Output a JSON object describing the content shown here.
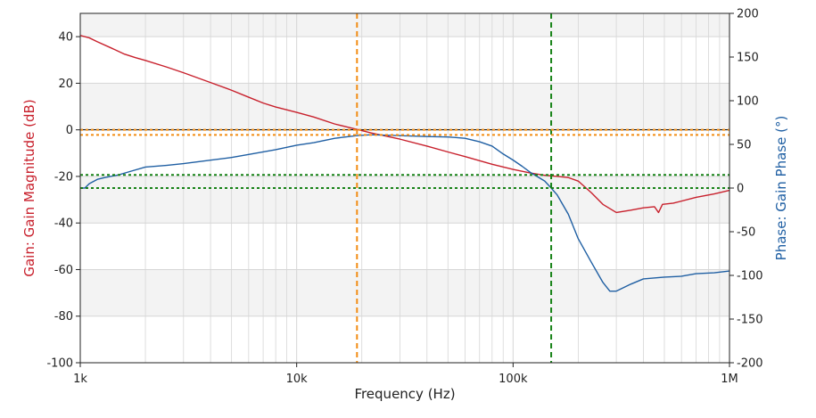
{
  "chart_data": {
    "type": "line",
    "title": "",
    "xlabel": "Frequency (Hz)",
    "ylabel_left": "Gain: Gain Magnitude (dB)",
    "ylabel_right": "Phase: Gain Phase (°)",
    "x_scale": "log",
    "xlim": [
      1000,
      1000000
    ],
    "ylim_left": [
      -100,
      50
    ],
    "ylim_right": [
      -200,
      200
    ],
    "grid": true,
    "x_ticks": [
      {
        "value": 1000,
        "label": "1k"
      },
      {
        "value": 10000,
        "label": "10k"
      },
      {
        "value": 100000,
        "label": "100k"
      },
      {
        "value": 1000000,
        "label": "1M"
      }
    ],
    "y_ticks_left": [
      {
        "value": 40,
        "label": "40"
      },
      {
        "value": 20,
        "label": "20"
      },
      {
        "value": 0,
        "label": "0"
      },
      {
        "value": -20,
        "label": "-20"
      },
      {
        "value": -40,
        "label": "-40"
      },
      {
        "value": -60,
        "label": "-60"
      },
      {
        "value": -80,
        "label": "-80"
      },
      {
        "value": -100,
        "label": "-100"
      }
    ],
    "y_ticks_right": [
      {
        "value": 200,
        "label": "200"
      },
      {
        "value": 150,
        "label": "150"
      },
      {
        "value": 100,
        "label": "100"
      },
      {
        "value": 50,
        "label": "50"
      },
      {
        "value": 0,
        "label": "0"
      },
      {
        "value": -50,
        "label": "-50"
      },
      {
        "value": -100,
        "label": "-100"
      },
      {
        "value": -150,
        "label": "-150"
      },
      {
        "value": -200,
        "label": "-200"
      }
    ],
    "series": [
      {
        "axis": "left",
        "color": "#c8202c",
        "points": [
          [
            1000,
            40.5
          ],
          [
            1100,
            39.5
          ],
          [
            1200,
            37.8
          ],
          [
            1400,
            35
          ],
          [
            1600,
            32.5
          ],
          [
            1800,
            31
          ],
          [
            2000,
            29.8
          ],
          [
            2500,
            27
          ],
          [
            3000,
            24.5
          ],
          [
            4000,
            20.3
          ],
          [
            5000,
            17
          ],
          [
            6000,
            14
          ],
          [
            7000,
            11.5
          ],
          [
            8000,
            9.8
          ],
          [
            10000,
            7.5
          ],
          [
            12000,
            5.5
          ],
          [
            15000,
            2.5
          ],
          [
            19000,
            0.2
          ],
          [
            22000,
            -1.3
          ],
          [
            30000,
            -4
          ],
          [
            40000,
            -7
          ],
          [
            50000,
            -9.5
          ],
          [
            60000,
            -11.5
          ],
          [
            80000,
            -14.8
          ],
          [
            100000,
            -17
          ],
          [
            120000,
            -18.5
          ],
          [
            140000,
            -19.5
          ],
          [
            160000,
            -20
          ],
          [
            180000,
            -20.5
          ],
          [
            200000,
            -22
          ],
          [
            230000,
            -27
          ],
          [
            260000,
            -32
          ],
          [
            300000,
            -35.5
          ],
          [
            350000,
            -34.5
          ],
          [
            400000,
            -33.5
          ],
          [
            450000,
            -33
          ],
          [
            470000,
            -35.5
          ],
          [
            490000,
            -32
          ],
          [
            550000,
            -31.5
          ],
          [
            700000,
            -29
          ],
          [
            850000,
            -27.5
          ],
          [
            1000000,
            -26
          ]
        ]
      },
      {
        "axis": "right",
        "color": "#1f5fa3",
        "points": [
          [
            1000,
            0
          ],
          [
            1050,
            0
          ],
          [
            1100,
            5
          ],
          [
            1200,
            10
          ],
          [
            1300,
            12
          ],
          [
            1500,
            15
          ],
          [
            1700,
            19
          ],
          [
            2000,
            24
          ],
          [
            2500,
            26
          ],
          [
            3000,
            28
          ],
          [
            4000,
            32
          ],
          [
            5000,
            35
          ],
          [
            6000,
            38.5
          ],
          [
            8000,
            44
          ],
          [
            10000,
            49
          ],
          [
            12000,
            52
          ],
          [
            15000,
            57
          ],
          [
            19000,
            60
          ],
          [
            22000,
            61
          ],
          [
            30000,
            60
          ],
          [
            40000,
            59
          ],
          [
            50000,
            58.5
          ],
          [
            60000,
            57
          ],
          [
            70000,
            53
          ],
          [
            80000,
            48
          ],
          [
            90000,
            39
          ],
          [
            100000,
            32
          ],
          [
            110000,
            25
          ],
          [
            120000,
            18
          ],
          [
            140000,
            8
          ],
          [
            150000,
            0
          ],
          [
            160000,
            -8
          ],
          [
            180000,
            -30
          ],
          [
            200000,
            -58
          ],
          [
            230000,
            -85
          ],
          [
            260000,
            -108
          ],
          [
            280000,
            -118
          ],
          [
            300000,
            -118
          ],
          [
            350000,
            -110
          ],
          [
            400000,
            -104
          ],
          [
            500000,
            -102
          ],
          [
            600000,
            -101
          ],
          [
            700000,
            -98
          ],
          [
            850000,
            -97
          ],
          [
            1000000,
            -95
          ]
        ]
      }
    ],
    "reference_lines": [
      {
        "orientation": "vertical",
        "axis": "x",
        "value": 19000,
        "color": "#f28c13"
      },
      {
        "orientation": "vertical",
        "axis": "x",
        "value": 150000,
        "color": "#168216"
      },
      {
        "orientation": "horizontal",
        "axis": "left",
        "value": 0,
        "color": "#f28c13"
      },
      {
        "orientation": "horizontal",
        "axis": "left",
        "value": -2.2,
        "color": "#f28c13"
      },
      {
        "orientation": "horizontal",
        "axis": "right",
        "value": 15,
        "color": "#168216"
      },
      {
        "orientation": "horizontal",
        "axis": "right",
        "value": 0,
        "color": "#168216"
      }
    ],
    "colors": {
      "gain_axis": "#c8202c",
      "phase_axis": "#1f5fa3",
      "plot_band": "#f3f3f3",
      "grid": "#d6d6d6",
      "zero_line": "#000000"
    }
  }
}
